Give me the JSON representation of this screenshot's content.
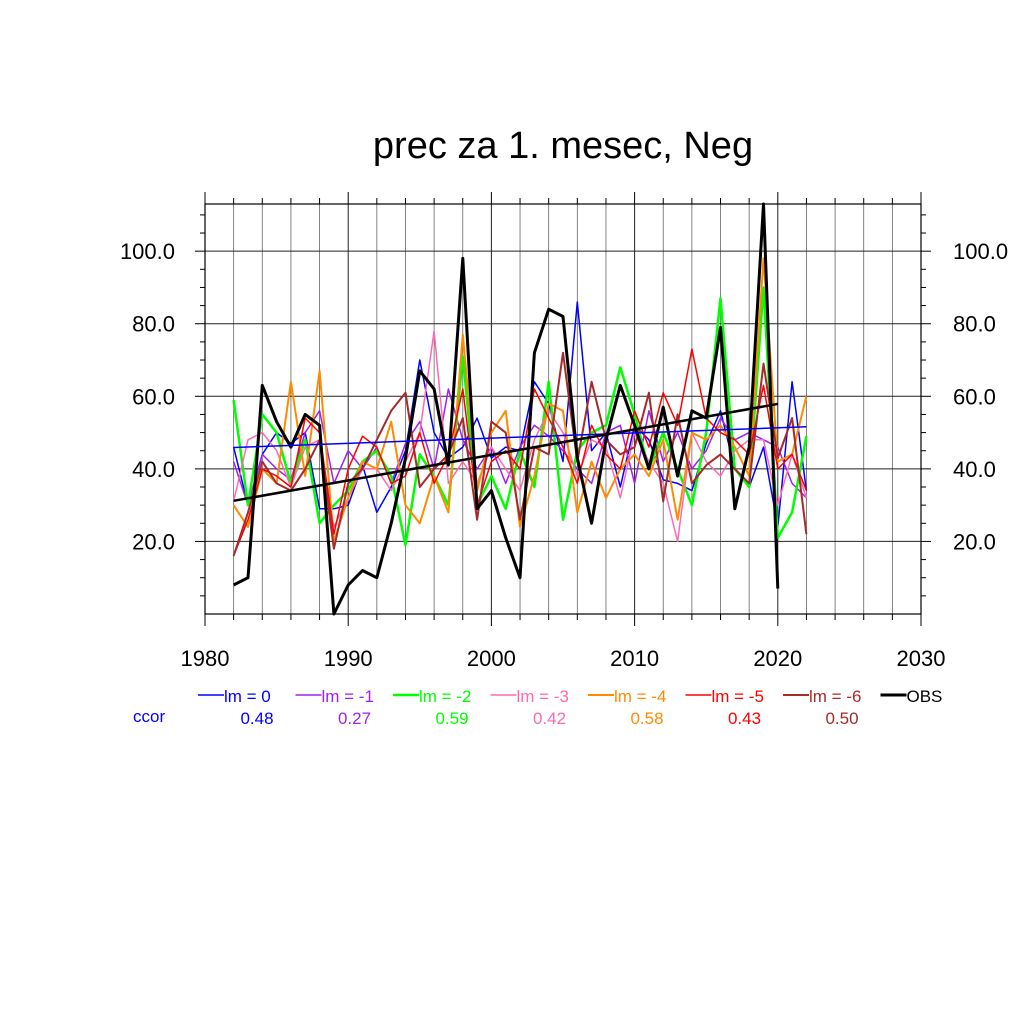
{
  "chart_data": {
    "type": "line",
    "title": "prec za 1. mesec, Neg",
    "xlabel": "",
    "ylabel": "",
    "xlim": [
      1980,
      2030
    ],
    "ylim": [
      0,
      113
    ],
    "x_ticks": [
      1980,
      1990,
      2000,
      2010,
      2020,
      2030
    ],
    "x_tick_labels": [
      "1980",
      "1990",
      "2000",
      "2010",
      "2020",
      "2030"
    ],
    "y_ticks": [
      20,
      40,
      60,
      80,
      100
    ],
    "y_tick_labels": [
      "20.0",
      "40.0",
      "60.0",
      "80.0",
      "100.0"
    ],
    "grid": true,
    "legend_position": "bottom",
    "ccor_label": "ccor",
    "ccor_color": "#0000ff",
    "series": [
      {
        "name": "lm = 0",
        "color": "#0000ff",
        "width": 1.5,
        "ccor": "0.48",
        "x": [
          1982,
          1983,
          1984,
          1985,
          1986,
          1987,
          1988,
          1989,
          1990,
          1991,
          1992,
          1993,
          1994,
          1995,
          1996,
          1997,
          1998,
          1999,
          2000,
          2001,
          2002,
          2003,
          2004,
          2005,
          2006,
          2007,
          2008,
          2009,
          2010,
          2011,
          2012,
          2013,
          2014,
          2015,
          2016,
          2017,
          2018,
          2019,
          2020,
          2021,
          2022
        ],
        "y": [
          46,
          30,
          44,
          50,
          47,
          50,
          29,
          29,
          30,
          41,
          28,
          35,
          45,
          70,
          50,
          43,
          46,
          54,
          43,
          46,
          45,
          64,
          58,
          42,
          86,
          45,
          50,
          35,
          52,
          48,
          37,
          36,
          34,
          47,
          56,
          40,
          35,
          46,
          24,
          64,
          34
        ]
      },
      {
        "name": "lm = -1",
        "color": "#a020f0",
        "width": 1.5,
        "ccor": "0.27",
        "x": [
          1982,
          1983,
          1984,
          1985,
          1986,
          1987,
          1988,
          1989,
          1990,
          1991,
          1992,
          1993,
          1994,
          1995,
          1996,
          1997,
          1998,
          1999,
          2000,
          2001,
          2002,
          2003,
          2004,
          2005,
          2006,
          2007,
          2008,
          2009,
          2010,
          2011,
          2012,
          2013,
          2014,
          2015,
          2016,
          2017,
          2018,
          2019,
          2020,
          2021,
          2022
        ],
        "y": [
          42,
          30,
          44,
          40,
          37,
          50,
          56,
          36,
          45,
          40,
          46,
          36,
          47,
          53,
          40,
          62,
          48,
          40,
          46,
          36,
          46,
          52,
          49,
          45,
          40,
          36,
          50,
          52,
          36,
          56,
          42,
          50,
          40,
          45,
          54,
          48,
          50,
          48,
          46,
          36,
          32
        ]
      },
      {
        "name": "lm = -2",
        "color": "#00ff00",
        "width": 2.5,
        "ccor": "0.59",
        "x": [
          1982,
          1983,
          1984,
          1985,
          1986,
          1987,
          1988,
          1989,
          1990,
          1991,
          1992,
          1993,
          1994,
          1995,
          1996,
          1997,
          1998,
          1999,
          2000,
          2001,
          2002,
          2003,
          2004,
          2005,
          2006,
          2007,
          2008,
          2009,
          2010,
          2011,
          2012,
          2013,
          2014,
          2015,
          2016,
          2017,
          2018,
          2019,
          2020,
          2021,
          2022
        ],
        "y": [
          59,
          30,
          55,
          50,
          36,
          48,
          25,
          30,
          34,
          42,
          45,
          38,
          19,
          44,
          38,
          30,
          71,
          30,
          38,
          29,
          45,
          35,
          64,
          26,
          45,
          50,
          52,
          68,
          55,
          40,
          50,
          40,
          30,
          50,
          87,
          40,
          35,
          90,
          21,
          28,
          49
        ]
      },
      {
        "name": "lm = -3",
        "color": "#ff69b4",
        "width": 1.5,
        "ccor": "0.42",
        "x": [
          1982,
          1983,
          1984,
          1985,
          1986,
          1987,
          1988,
          1989,
          1990,
          1991,
          1992,
          1993,
          1994,
          1995,
          1996,
          1997,
          1998,
          1999,
          2000,
          2001,
          2002,
          2003,
          2004,
          2005,
          2006,
          2007,
          2008,
          2009,
          2010,
          2011,
          2012,
          2013,
          2014,
          2015,
          2016,
          2017,
          2018,
          2019,
          2020,
          2021,
          2022
        ],
        "y": [
          31,
          48,
          50,
          45,
          35,
          46,
          48,
          24,
          32,
          40,
          40,
          34,
          42,
          50,
          78,
          36,
          42,
          36,
          46,
          40,
          34,
          48,
          56,
          50,
          38,
          48,
          46,
          32,
          50,
          42,
          36,
          20,
          50,
          42,
          38,
          45,
          48,
          48,
          30,
          44,
          32
        ]
      },
      {
        "name": "lm = -4",
        "color": "#ff8c00",
        "width": 2.0,
        "ccor": "0.58",
        "x": [
          1982,
          1983,
          1984,
          1985,
          1986,
          1987,
          1988,
          1989,
          1990,
          1991,
          1992,
          1993,
          1994,
          1995,
          1996,
          1997,
          1998,
          1999,
          2000,
          2001,
          2002,
          2003,
          2004,
          2005,
          2006,
          2007,
          2008,
          2009,
          2010,
          2011,
          2012,
          2013,
          2014,
          2015,
          2016,
          2017,
          2018,
          2019,
          2020,
          2021,
          2022
        ],
        "y": [
          30,
          24,
          40,
          36,
          64,
          38,
          67,
          20,
          32,
          42,
          40,
          53,
          30,
          25,
          38,
          28,
          77,
          34,
          50,
          56,
          24,
          38,
          58,
          56,
          28,
          42,
          32,
          40,
          44,
          38,
          48,
          26,
          50,
          48,
          52,
          46,
          38,
          98,
          42,
          44,
          60
        ]
      },
      {
        "name": "lm = -5",
        "color": "#ff0000",
        "width": 1.5,
        "ccor": "0.43",
        "x": [
          1982,
          1983,
          1984,
          1985,
          1986,
          1987,
          1988,
          1989,
          1990,
          1991,
          1992,
          1993,
          1994,
          1995,
          1996,
          1997,
          1998,
          1999,
          2000,
          2001,
          2002,
          2003,
          2004,
          2005,
          2006,
          2007,
          2008,
          2009,
          2010,
          2011,
          2012,
          2013,
          2014,
          2015,
          2016,
          2017,
          2018,
          2019,
          2020,
          2021,
          2022
        ],
        "y": [
          16,
          26,
          40,
          38,
          35,
          54,
          50,
          22,
          40,
          49,
          46,
          36,
          38,
          50,
          36,
          44,
          62,
          30,
          42,
          45,
          40,
          62,
          54,
          46,
          36,
          52,
          44,
          40,
          56,
          46,
          61,
          52,
          73,
          54,
          50,
          48,
          44,
          63,
          40,
          44,
          34
        ]
      },
      {
        "name": "lm = -6",
        "color": "#a52a2a",
        "width": 2.0,
        "ccor": "0.50",
        "x": [
          1982,
          1983,
          1984,
          1985,
          1986,
          1987,
          1988,
          1989,
          1990,
          1991,
          1992,
          1993,
          1994,
          1995,
          1996,
          1997,
          1998,
          1999,
          2000,
          2001,
          2002,
          2003,
          2004,
          2005,
          2006,
          2007,
          2008,
          2009,
          2010,
          2011,
          2012,
          2013,
          2014,
          2015,
          2016,
          2017,
          2018,
          2019,
          2020,
          2021,
          2022
        ],
        "y": [
          16,
          28,
          42,
          36,
          34,
          40,
          48,
          18,
          36,
          40,
          48,
          56,
          61,
          35,
          40,
          44,
          54,
          26,
          53,
          50,
          26,
          46,
          44,
          72,
          42,
          64,
          48,
          44,
          46,
          61,
          31,
          55,
          36,
          41,
          44,
          40,
          36,
          69,
          43,
          54,
          22
        ]
      },
      {
        "name": "OBS",
        "color": "#000000",
        "width": 3.0,
        "ccor": "",
        "x": [
          1982,
          1983,
          1984,
          1985,
          1986,
          1987,
          1988,
          1989,
          1990,
          1991,
          1992,
          1993,
          1994,
          1995,
          1996,
          1997,
          1998,
          1999,
          2000,
          2001,
          2002,
          2003,
          2004,
          2005,
          2006,
          2007,
          2008,
          2009,
          2010,
          2011,
          2012,
          2013,
          2014,
          2015,
          2016,
          2017,
          2018,
          2019,
          2020
        ],
        "y": [
          8,
          10,
          63,
          53,
          46,
          55,
          52,
          0,
          8,
          12,
          10,
          25,
          43,
          67,
          62,
          41,
          98,
          29,
          34,
          21,
          10,
          72,
          84,
          82,
          43,
          25,
          48,
          63,
          52,
          40,
          57,
          38,
          56,
          54,
          79,
          29,
          46,
          113,
          7
        ]
      }
    ],
    "trend_lines": [
      {
        "name": "trend-lm-0",
        "color": "#0000ff",
        "width": 1.5,
        "x": [
          1982,
          2022
        ],
        "y": [
          45.9,
          51.6
        ]
      },
      {
        "name": "trend-obs",
        "color": "#000000",
        "width": 2.5,
        "x": [
          1982,
          2020
        ],
        "y": [
          31.2,
          57.9
        ]
      }
    ]
  }
}
